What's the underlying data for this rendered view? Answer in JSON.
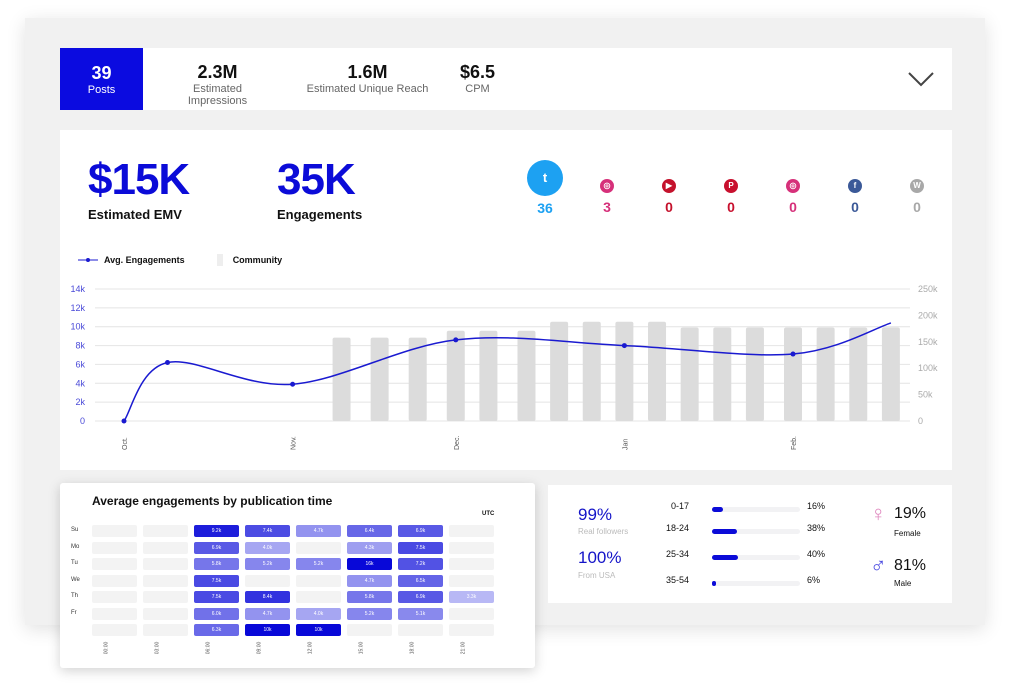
{
  "topbar": {
    "posts": {
      "value": "39",
      "label": "Posts"
    },
    "kpis": [
      {
        "value": "2.3M",
        "label": "Estimated Impressions"
      },
      {
        "value": "1.6M",
        "label": "Estimated Unique Reach"
      },
      {
        "value": "$6.5",
        "label": "CPM"
      }
    ],
    "expand_icon": "chevron-down-icon"
  },
  "summary": {
    "emv": {
      "value": "$15K",
      "label": "Estimated EMV"
    },
    "engagements": {
      "value": "35K",
      "label": "Engagements"
    }
  },
  "socials": [
    {
      "name": "twitter",
      "icon": "twitter-icon",
      "count": "36",
      "color": "#1da1f2"
    },
    {
      "name": "instagram",
      "icon": "instagram-icon",
      "count": "3",
      "color": "#d6307a"
    },
    {
      "name": "youtube",
      "icon": "youtube-icon",
      "count": "0",
      "color": "#c4122c"
    },
    {
      "name": "pinterest",
      "icon": "pinterest-icon",
      "count": "0",
      "color": "#c8102e"
    },
    {
      "name": "instagram",
      "icon": "instagram-icon",
      "count": "0",
      "color": "#d6307a"
    },
    {
      "name": "facebook",
      "icon": "facebook-icon",
      "count": "0",
      "color": "#3b5998"
    },
    {
      "name": "wordpress",
      "icon": "wordpress-icon",
      "count": "0",
      "color": "#a8a8a8"
    }
  ],
  "chart_data": {
    "type": "line+bar",
    "legend": [
      {
        "name": "Avg. Engagements",
        "color": "#1a1ad0"
      },
      {
        "name": "Community",
        "color": "#dcdcdc"
      }
    ],
    "legend_position": "top-left",
    "grid": true,
    "x_ticks": [
      "Oct.",
      "Nov.",
      "Dec.",
      "Jan",
      "Feb."
    ],
    "y_left": {
      "ticks": [
        "0",
        "2k",
        "4k",
        "6k",
        "8k",
        "10k",
        "12k",
        "14k"
      ],
      "range": [
        0,
        14000
      ]
    },
    "y_right": {
      "ticks": [
        "0",
        "50k",
        "100k",
        "150k",
        "200k",
        "250k"
      ],
      "range": [
        0,
        250000
      ]
    },
    "series": [
      {
        "name": "Avg. Engagements",
        "axis": "left",
        "type": "line",
        "points": [
          [
            "Oct 1",
            0
          ],
          [
            "Oct 9",
            6200
          ],
          [
            "Nov 1",
            3900
          ],
          [
            "Dec 1",
            8600
          ],
          [
            "Jan 1",
            8000
          ],
          [
            "Feb 1",
            7100
          ],
          [
            "Feb 19",
            10400
          ]
        ]
      },
      {
        "name": "Community",
        "axis": "right",
        "type": "bar",
        "points": [
          [
            "Nov 10",
            158000
          ],
          [
            "Nov 17",
            158000
          ],
          [
            "Nov 24",
            158000
          ],
          [
            "Dec 1",
            171000
          ],
          [
            "Dec 7",
            171000
          ],
          [
            "Dec 14",
            171000
          ],
          [
            "Dec 20",
            188000
          ],
          [
            "Dec 26",
            188000
          ],
          [
            "Jan 1",
            188000
          ],
          [
            "Jan 7",
            188000
          ],
          [
            "Jan 13",
            177000
          ],
          [
            "Jan 19",
            177000
          ],
          [
            "Jan 25",
            177000
          ],
          [
            "Feb 1",
            177000
          ],
          [
            "Feb 7",
            177000
          ],
          [
            "Feb 13",
            177000
          ],
          [
            "Feb 19",
            177000
          ]
        ]
      }
    ]
  },
  "heatmap": {
    "title": "Average engagements by publication time",
    "timezone": "UTC",
    "days": [
      "Su",
      "Mo",
      "Tu",
      "We",
      "Th",
      "Fr",
      ""
    ],
    "times": [
      "00:00",
      "03:00",
      "06:00",
      "09:00",
      "12:00",
      "15:00",
      "18:00",
      "21:00"
    ],
    "values": [
      [
        "",
        "",
        "9.2k",
        "7.4k",
        "4.7k",
        "6.4k",
        "6.9k",
        ""
      ],
      [
        "",
        "",
        "6.9k",
        "4.0k",
        "",
        "4.3k",
        "7.5k",
        ""
      ],
      [
        "",
        "",
        "5.8k",
        "5.2k",
        "5.2k",
        "16k",
        "7.2k",
        ""
      ],
      [
        "",
        "",
        "7.5k",
        "",
        "",
        "4.7k",
        "6.5k",
        ""
      ],
      [
        "",
        "",
        "7.5k",
        "8.4k",
        "",
        "5.8k",
        "6.9k",
        "3.3k"
      ],
      [
        "",
        "",
        "6.0k",
        "4.7k",
        "4.0k",
        "5.2k",
        "5.1k",
        ""
      ],
      [
        "",
        "",
        "6.3k",
        "10k",
        "10k",
        "",
        "",
        ""
      ]
    ]
  },
  "audience": {
    "real_followers": {
      "value": "99%",
      "label": "Real followers"
    },
    "from_usa": {
      "value": "100%",
      "label": "From USA"
    },
    "ages": [
      {
        "range": "0-17",
        "pct": "16%",
        "value": 16
      },
      {
        "range": "18-24",
        "pct": "38%",
        "value": 38
      },
      {
        "range": "25-34",
        "pct": "40%",
        "value": 40
      },
      {
        "range": "35-54",
        "pct": "6%",
        "value": 6
      }
    ],
    "female": {
      "value": "19%",
      "label": "Female",
      "icon": "female-icon",
      "color": "#e08ac0"
    },
    "male": {
      "value": "81%",
      "label": "Male",
      "icon": "male-icon",
      "color": "#4a4ae0"
    }
  }
}
